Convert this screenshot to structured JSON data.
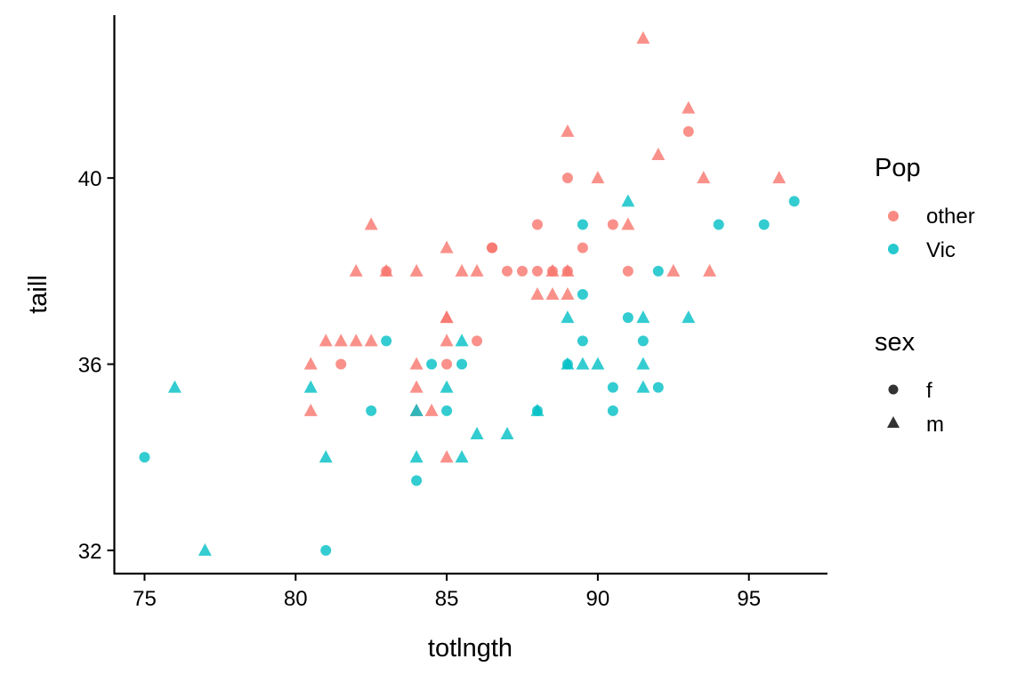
{
  "chart_data": {
    "type": "scatter",
    "xlabel": "totlngth",
    "ylabel": "taill",
    "xlim": [
      74,
      97.6
    ],
    "ylim": [
      31.5,
      43.5
    ],
    "x_ticks": [
      75,
      80,
      85,
      90,
      95
    ],
    "y_ticks": [
      32,
      36,
      40
    ],
    "grid": false,
    "legend_position": "right",
    "legends": [
      {
        "title": "Pop",
        "kind": "color",
        "entries": [
          {
            "label": "other",
            "color": "#F8766D"
          },
          {
            "label": "Vic",
            "color": "#00BFC4"
          }
        ]
      },
      {
        "title": "sex",
        "kind": "shape",
        "entries": [
          {
            "label": "f",
            "shape": "circle"
          },
          {
            "label": "m",
            "shape": "triangle"
          }
        ]
      }
    ],
    "series": [
      {
        "pop": "other",
        "sex": "f",
        "points": [
          [
            81.5,
            36
          ],
          [
            85,
            36
          ],
          [
            86,
            36.5
          ],
          [
            83,
            38
          ],
          [
            86.5,
            38.5
          ],
          [
            86.5,
            38.5
          ],
          [
            87,
            38
          ],
          [
            87.5,
            38
          ],
          [
            88,
            38
          ],
          [
            88.5,
            38
          ],
          [
            89,
            38
          ],
          [
            88,
            39
          ],
          [
            89,
            40
          ],
          [
            89.5,
            38.5
          ],
          [
            90.5,
            39
          ],
          [
            91,
            38
          ],
          [
            93,
            41
          ]
        ]
      },
      {
        "pop": "other",
        "sex": "m",
        "points": [
          [
            80.5,
            36
          ],
          [
            80.5,
            35
          ],
          [
            81,
            36.5
          ],
          [
            81.5,
            36.5
          ],
          [
            82,
            36.5
          ],
          [
            82,
            38
          ],
          [
            82.5,
            36.5
          ],
          [
            82.5,
            39
          ],
          [
            83,
            38
          ],
          [
            84,
            38
          ],
          [
            84,
            36
          ],
          [
            84,
            35.5
          ],
          [
            84,
            35
          ],
          [
            84.5,
            35
          ],
          [
            85,
            38.5
          ],
          [
            85,
            37
          ],
          [
            85,
            37
          ],
          [
            85,
            36.5
          ],
          [
            85,
            34
          ],
          [
            85.5,
            38
          ],
          [
            86,
            38
          ],
          [
            88,
            37.5
          ],
          [
            88.5,
            37.5
          ],
          [
            88.5,
            38
          ],
          [
            89,
            38
          ],
          [
            89,
            37.5
          ],
          [
            89,
            41
          ],
          [
            90,
            40
          ],
          [
            91,
            39
          ],
          [
            92,
            40.5
          ],
          [
            92.5,
            38
          ],
          [
            93,
            41.5
          ],
          [
            93.5,
            40
          ],
          [
            93.7,
            38
          ],
          [
            96,
            40
          ],
          [
            91.5,
            43
          ]
        ]
      },
      {
        "pop": "Vic",
        "sex": "f",
        "points": [
          [
            75,
            34
          ],
          [
            81,
            32
          ],
          [
            82.5,
            35
          ],
          [
            83,
            36.5
          ],
          [
            84,
            33.5
          ],
          [
            84.5,
            36
          ],
          [
            85,
            35
          ],
          [
            85.5,
            36
          ],
          [
            88,
            35
          ],
          [
            89,
            36
          ],
          [
            89.5,
            37.5
          ],
          [
            89.5,
            36.5
          ],
          [
            89.5,
            39
          ],
          [
            90.5,
            35.5
          ],
          [
            90.5,
            35
          ],
          [
            91,
            37
          ],
          [
            91.5,
            36.5
          ],
          [
            92,
            38
          ],
          [
            92,
            35.5
          ],
          [
            94,
            39
          ],
          [
            95.5,
            39
          ],
          [
            96.5,
            39.5
          ]
        ]
      },
      {
        "pop": "Vic",
        "sex": "m",
        "points": [
          [
            76,
            35.5
          ],
          [
            77,
            32
          ],
          [
            80.5,
            35.5
          ],
          [
            81,
            34
          ],
          [
            84,
            34
          ],
          [
            84,
            35
          ],
          [
            85,
            35.5
          ],
          [
            85.5,
            36.5
          ],
          [
            85.5,
            34
          ],
          [
            86,
            34.5
          ],
          [
            87,
            34.5
          ],
          [
            88,
            35
          ],
          [
            89,
            37
          ],
          [
            89,
            36
          ],
          [
            89.5,
            36
          ],
          [
            90,
            36
          ],
          [
            91,
            39.5
          ],
          [
            91.5,
            36
          ],
          [
            91.5,
            35.5
          ],
          [
            91.5,
            37
          ],
          [
            93,
            37
          ]
        ]
      }
    ]
  }
}
